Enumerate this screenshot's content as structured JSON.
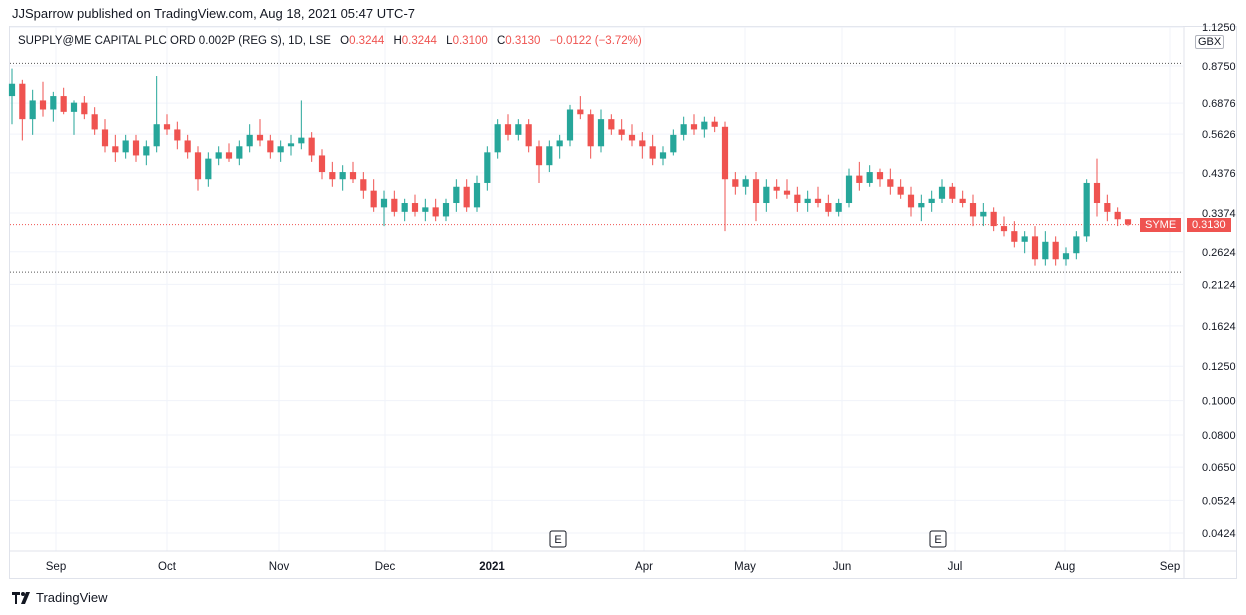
{
  "publisher_line": "JJSparrow published on TradingView.com, Aug 18, 2021 05:47 UTC-7",
  "legend": {
    "symbol": "SUPPLY@ME CAPITAL PLC ORD 0.002P (REG S), 1D, LSE",
    "open_label": "O",
    "open": "0.3244",
    "high_label": "H",
    "high": "0.3244",
    "low_label": "L",
    "low": "0.3100",
    "close_label": "C",
    "close": "0.3130",
    "change": "−0.0122 (−3.72%)"
  },
  "currency": "GBX",
  "ticker_tag": "SYME",
  "price_tag": "0.3130",
  "earnings_marker": "E",
  "footer_brand": "TradingView",
  "colors": {
    "up": "#26a69a",
    "down": "#ef5350",
    "grid": "#f0f3fa",
    "axis_text": "#131722"
  },
  "chart_data": {
    "type": "candlestick",
    "scale": "log",
    "y_ticks": [
      "1.1250",
      "0.8750",
      "0.6876",
      "0.5626",
      "0.4376",
      "0.3374",
      "0.2624",
      "0.2124",
      "0.1624",
      "0.1250",
      "0.1000",
      "0.0800",
      "0.0650",
      "0.0524",
      "0.0424"
    ],
    "x_ticks": [
      "Sep",
      "Oct",
      "Nov",
      "Dec",
      "2021",
      "Apr",
      "May",
      "Jun",
      "Jul",
      "Aug",
      "Sep"
    ],
    "earnings_events": [
      "2021-01-22",
      "2021-06-29"
    ],
    "last_price": 0.313,
    "reference_lines": [
      0.89,
      0.23
    ],
    "grid": true,
    "candles_ohlc": [
      [
        0.72,
        0.86,
        0.6,
        0.78
      ],
      [
        0.78,
        0.8,
        0.54,
        0.62
      ],
      [
        0.62,
        0.75,
        0.56,
        0.7
      ],
      [
        0.7,
        0.79,
        0.63,
        0.66
      ],
      [
        0.66,
        0.74,
        0.61,
        0.72
      ],
      [
        0.72,
        0.76,
        0.64,
        0.65
      ],
      [
        0.65,
        0.7,
        0.56,
        0.69
      ],
      [
        0.69,
        0.72,
        0.62,
        0.64
      ],
      [
        0.64,
        0.67,
        0.56,
        0.58
      ],
      [
        0.58,
        0.62,
        0.5,
        0.52
      ],
      [
        0.52,
        0.56,
        0.47,
        0.5
      ],
      [
        0.5,
        0.56,
        0.48,
        0.54
      ],
      [
        0.54,
        0.56,
        0.47,
        0.49
      ],
      [
        0.49,
        0.54,
        0.46,
        0.52
      ],
      [
        0.52,
        0.82,
        0.5,
        0.6
      ],
      [
        0.6,
        0.64,
        0.56,
        0.58
      ],
      [
        0.58,
        0.61,
        0.51,
        0.54
      ],
      [
        0.54,
        0.56,
        0.48,
        0.5
      ],
      [
        0.5,
        0.52,
        0.39,
        0.42
      ],
      [
        0.42,
        0.5,
        0.4,
        0.48
      ],
      [
        0.48,
        0.52,
        0.46,
        0.5
      ],
      [
        0.5,
        0.53,
        0.47,
        0.48
      ],
      [
        0.48,
        0.54,
        0.46,
        0.52
      ],
      [
        0.52,
        0.6,
        0.5,
        0.56
      ],
      [
        0.56,
        0.62,
        0.52,
        0.54
      ],
      [
        0.54,
        0.56,
        0.48,
        0.5
      ],
      [
        0.5,
        0.54,
        0.47,
        0.52
      ],
      [
        0.52,
        0.56,
        0.49,
        0.53
      ],
      [
        0.53,
        0.7,
        0.51,
        0.55
      ],
      [
        0.55,
        0.57,
        0.47,
        0.49
      ],
      [
        0.49,
        0.51,
        0.42,
        0.44
      ],
      [
        0.44,
        0.47,
        0.4,
        0.42
      ],
      [
        0.42,
        0.46,
        0.39,
        0.44
      ],
      [
        0.44,
        0.47,
        0.41,
        0.42
      ],
      [
        0.42,
        0.44,
        0.37,
        0.39
      ],
      [
        0.39,
        0.42,
        0.34,
        0.35
      ],
      [
        0.35,
        0.39,
        0.31,
        0.37
      ],
      [
        0.37,
        0.39,
        0.33,
        0.34
      ],
      [
        0.34,
        0.37,
        0.32,
        0.36
      ],
      [
        0.36,
        0.38,
        0.33,
        0.34
      ],
      [
        0.34,
        0.37,
        0.32,
        0.35
      ],
      [
        0.35,
        0.37,
        0.32,
        0.33
      ],
      [
        0.33,
        0.37,
        0.32,
        0.36
      ],
      [
        0.36,
        0.42,
        0.34,
        0.4
      ],
      [
        0.4,
        0.42,
        0.34,
        0.35
      ],
      [
        0.35,
        0.43,
        0.34,
        0.41
      ],
      [
        0.41,
        0.52,
        0.39,
        0.5
      ],
      [
        0.5,
        0.62,
        0.48,
        0.6
      ],
      [
        0.6,
        0.64,
        0.54,
        0.56
      ],
      [
        0.56,
        0.62,
        0.54,
        0.6
      ],
      [
        0.6,
        0.62,
        0.5,
        0.52
      ],
      [
        0.52,
        0.54,
        0.41,
        0.46
      ],
      [
        0.46,
        0.54,
        0.44,
        0.52
      ],
      [
        0.52,
        0.56,
        0.48,
        0.54
      ],
      [
        0.54,
        0.68,
        0.52,
        0.66
      ],
      [
        0.66,
        0.72,
        0.62,
        0.64
      ],
      [
        0.64,
        0.66,
        0.48,
        0.52
      ],
      [
        0.52,
        0.66,
        0.5,
        0.62
      ],
      [
        0.62,
        0.64,
        0.56,
        0.58
      ],
      [
        0.58,
        0.62,
        0.54,
        0.56
      ],
      [
        0.56,
        0.6,
        0.52,
        0.54
      ],
      [
        0.54,
        0.57,
        0.48,
        0.52
      ],
      [
        0.52,
        0.56,
        0.46,
        0.48
      ],
      [
        0.48,
        0.52,
        0.46,
        0.5
      ],
      [
        0.5,
        0.58,
        0.49,
        0.56
      ],
      [
        0.56,
        0.63,
        0.54,
        0.6
      ],
      [
        0.6,
        0.64,
        0.56,
        0.58
      ],
      [
        0.58,
        0.63,
        0.55,
        0.61
      ],
      [
        0.61,
        0.63,
        0.57,
        0.59
      ],
      [
        0.59,
        0.61,
        0.3,
        0.42
      ],
      [
        0.42,
        0.44,
        0.38,
        0.4
      ],
      [
        0.4,
        0.43,
        0.38,
        0.42
      ],
      [
        0.42,
        0.44,
        0.32,
        0.36
      ],
      [
        0.36,
        0.42,
        0.34,
        0.4
      ],
      [
        0.4,
        0.42,
        0.37,
        0.39
      ],
      [
        0.39,
        0.42,
        0.37,
        0.38
      ],
      [
        0.38,
        0.4,
        0.34,
        0.36
      ],
      [
        0.36,
        0.39,
        0.34,
        0.37
      ],
      [
        0.37,
        0.4,
        0.35,
        0.36
      ],
      [
        0.36,
        0.38,
        0.33,
        0.34
      ],
      [
        0.34,
        0.37,
        0.33,
        0.36
      ],
      [
        0.36,
        0.45,
        0.35,
        0.43
      ],
      [
        0.43,
        0.47,
        0.39,
        0.41
      ],
      [
        0.41,
        0.46,
        0.4,
        0.44
      ],
      [
        0.44,
        0.45,
        0.4,
        0.42
      ],
      [
        0.42,
        0.45,
        0.38,
        0.4
      ],
      [
        0.4,
        0.42,
        0.37,
        0.38
      ],
      [
        0.38,
        0.4,
        0.33,
        0.35
      ],
      [
        0.35,
        0.38,
        0.32,
        0.36
      ],
      [
        0.36,
        0.39,
        0.34,
        0.37
      ],
      [
        0.37,
        0.42,
        0.36,
        0.4
      ],
      [
        0.4,
        0.41,
        0.36,
        0.37
      ],
      [
        0.37,
        0.39,
        0.35,
        0.36
      ],
      [
        0.36,
        0.38,
        0.31,
        0.33
      ],
      [
        0.33,
        0.36,
        0.31,
        0.34
      ],
      [
        0.34,
        0.35,
        0.3,
        0.31
      ],
      [
        0.31,
        0.33,
        0.29,
        0.3
      ],
      [
        0.3,
        0.32,
        0.27,
        0.28
      ],
      [
        0.28,
        0.3,
        0.26,
        0.29
      ],
      [
        0.29,
        0.31,
        0.24,
        0.25
      ],
      [
        0.25,
        0.3,
        0.24,
        0.28
      ],
      [
        0.28,
        0.29,
        0.24,
        0.25
      ],
      [
        0.25,
        0.27,
        0.24,
        0.26
      ],
      [
        0.26,
        0.3,
        0.25,
        0.29
      ],
      [
        0.29,
        0.42,
        0.28,
        0.41
      ],
      [
        0.41,
        0.48,
        0.33,
        0.36
      ],
      [
        0.36,
        0.38,
        0.32,
        0.34
      ],
      [
        0.34,
        0.35,
        0.31,
        0.324
      ],
      [
        0.324,
        0.324,
        0.31,
        0.313
      ]
    ]
  }
}
